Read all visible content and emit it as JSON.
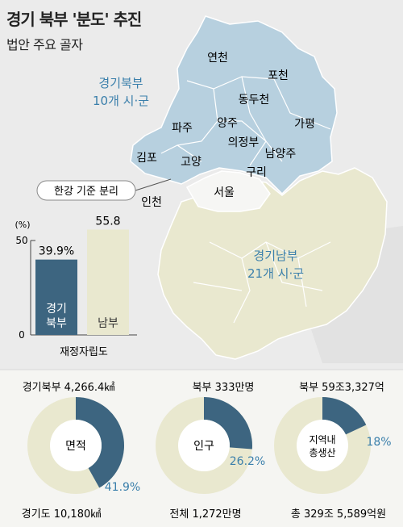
{
  "title": "경기 북부 '분도' 추진",
  "subtitle": "법안 주요 골자",
  "map": {
    "north_label": "경기북부",
    "north_sub": "10개 시·군",
    "south_label": "경기남부",
    "south_sub": "21개 시·군",
    "callout": "한강 기준 분리",
    "places": [
      "연천",
      "포천",
      "동두천",
      "가평",
      "파주",
      "양주",
      "의정부",
      "김포",
      "고양",
      "남양주",
      "구리",
      "서울",
      "인천"
    ]
  },
  "colors": {
    "north_map": "#b7d0df",
    "south_map": "#e9e8cf",
    "north_dark": "#3d6580",
    "south_light": "#e9e8cf",
    "accent_text": "#3a7fab",
    "background": "#ebebeb"
  },
  "chart_data": [
    {
      "type": "bar",
      "title": "",
      "xlabel": "재정자립도",
      "ylabel": "(%)",
      "ylim": [
        0,
        60
      ],
      "yticks": [
        0,
        50
      ],
      "categories": [
        "경기 북부",
        "남부"
      ],
      "values": [
        39.9,
        55.8
      ],
      "value_labels": [
        "39.9%",
        "55.8"
      ],
      "bar_labels": [
        "경기\n북부",
        "남부"
      ],
      "colors": [
        "#3d6580",
        "#e9e8cf"
      ]
    },
    {
      "type": "pie",
      "center_label": "면적",
      "top_label": "경기북부 4,266.4㎢",
      "bottom_label": "경기도 10,180㎢",
      "share_label": "41.9%",
      "values": [
        41.9,
        58.1
      ]
    },
    {
      "type": "pie",
      "center_label": "인구",
      "top_label": "북부 333만명",
      "bottom_label": "전체 1,272만명",
      "share_label": "26.2%",
      "values": [
        26.2,
        73.8
      ]
    },
    {
      "type": "pie",
      "center_label": "지역내\n총생산",
      "top_label": "북부 59조3,327억",
      "bottom_label": "총 329조 5,589억원",
      "share_label": "18%",
      "values": [
        18,
        82
      ]
    }
  ]
}
